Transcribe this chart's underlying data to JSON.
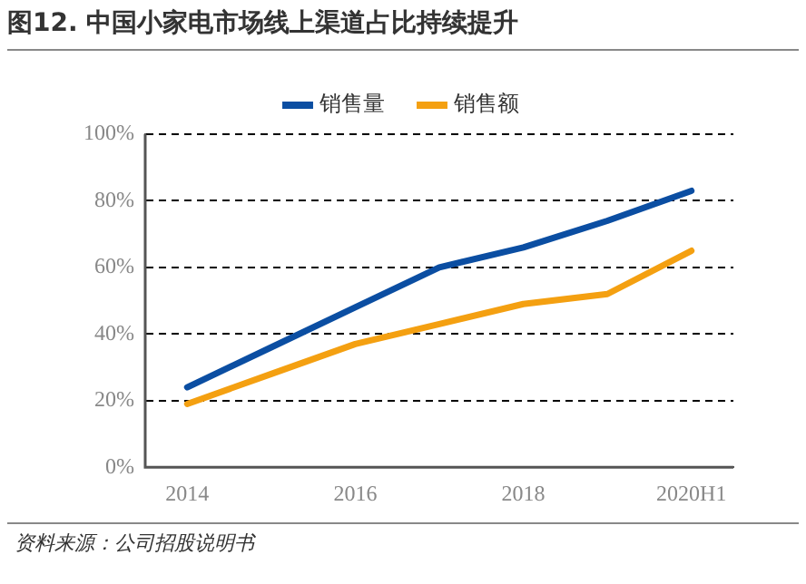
{
  "chart_data": {
    "type": "line",
    "title": "图12. 中国小家电市场线上渠道占比持续提升",
    "categories": [
      "2014",
      null,
      "2016",
      null,
      "2018",
      null,
      "2020H1"
    ],
    "series": [
      {
        "name": "销售量",
        "color": "#0b4ea2",
        "values": [
          24,
          36,
          48,
          60,
          66,
          74,
          83
        ]
      },
      {
        "name": "销售额",
        "color": "#f4a011",
        "values": [
          19,
          28,
          37,
          43,
          49,
          52,
          65
        ]
      }
    ],
    "ylim": [
      0,
      100
    ],
    "yticks": [
      {
        "value": 0,
        "label": "0%"
      },
      {
        "value": 20,
        "label": "20%"
      },
      {
        "value": 40,
        "label": "40%"
      },
      {
        "value": 60,
        "label": "60%"
      },
      {
        "value": 80,
        "label": "80%"
      },
      {
        "value": 100,
        "label": "100%"
      }
    ],
    "grid": "y",
    "legend": "top",
    "marker": "none",
    "line_style": "solid",
    "annotations": [
      "资料来源：公司招股说明书"
    ]
  }
}
